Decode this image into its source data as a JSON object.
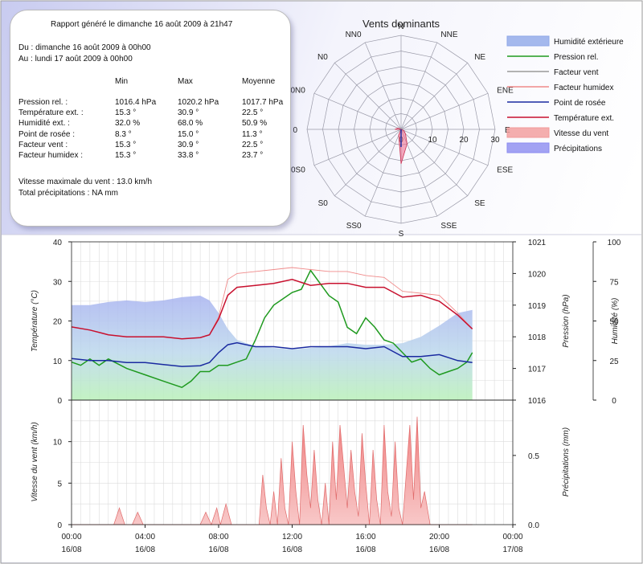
{
  "summary": {
    "title": "Rapport généré le dimanche 16 août 2009 à 21h47",
    "from": "Du : dimanche 16 août 2009 à 00h00",
    "to": "Au : lundi 17 août 2009 à 00h00",
    "headers": [
      "Min",
      "Max",
      "Moyenne"
    ],
    "rows": [
      {
        "label": "Pression rel. :",
        "min": "1016.4 hPa",
        "max": "1020.2 hPa",
        "avg": "1017.7 hPa"
      },
      {
        "label": "Température ext. :",
        "min": "15.3 °",
        "max": "30.9 °",
        "avg": "22.5 °"
      },
      {
        "label": "Humidité ext. :",
        "min": "32.0 %",
        "max": "68.0 %",
        "avg": "50.9 %"
      },
      {
        "label": "Point de rosée :",
        "min": "8.3 °",
        "max": "15.0 °",
        "avg": "11.3 °"
      },
      {
        "label": "Facteur vent :",
        "min": "15.3 °",
        "max": "30.9 °",
        "avg": "22.5 °"
      },
      {
        "label": "Facteur humidex :",
        "min": "15.3 °",
        "max": "33.8 °",
        "avg": "23.7 °"
      }
    ],
    "max_wind": "Vitesse maximale du vent : 13.0 km/h",
    "total_precip": "Total précipitations : NA mm"
  },
  "legend": [
    {
      "label": "Humidité extérieure",
      "kind": "area",
      "color": "#8fa8e8"
    },
    {
      "label": "Pression rel.",
      "kind": "line",
      "color": "#1f9a1f"
    },
    {
      "label": "Facteur vent",
      "kind": "line",
      "color": "#999999"
    },
    {
      "label": "Facteur humidex",
      "kind": "line",
      "color": "#f08a8a"
    },
    {
      "label": "Point de rosée",
      "kind": "line",
      "color": "#1a2aa0"
    },
    {
      "label": "Température ext.",
      "kind": "line",
      "color": "#c8102e"
    },
    {
      "label": "Vitesse du vent",
      "kind": "area",
      "color": "#f29a9a"
    },
    {
      "label": "Précipitations",
      "kind": "area",
      "color": "#8c8cf0"
    }
  ],
  "chart_data": [
    {
      "type": "radar",
      "title": "Vents dominants",
      "directions": [
        "N",
        "NNE",
        "NE",
        "ENE",
        "E",
        "ESE",
        "SE",
        "SSE",
        "S",
        "SS0",
        "S0",
        "0S0",
        "0",
        "0N0",
        "N0",
        "NN0"
      ],
      "radial_ticks": [
        0,
        10,
        20,
        30
      ],
      "rmax": 30,
      "values": [
        0,
        0,
        0,
        0,
        0,
        1,
        2,
        5,
        11,
        2,
        0,
        0,
        2,
        1,
        0,
        0
      ]
    },
    {
      "type": "line",
      "xlabels": [
        [
          "00:00",
          "16/08"
        ],
        [
          "04:00",
          "16/08"
        ],
        [
          "08:00",
          "16/08"
        ],
        [
          "12:00",
          "16/08"
        ],
        [
          "16:00",
          "16/08"
        ],
        [
          "20:00",
          "16/08"
        ],
        [
          "00:00",
          "17/08"
        ]
      ],
      "xlim": [
        0,
        24
      ],
      "ylabel_left": "Température (°C)",
      "ylim_left": [
        0,
        40
      ],
      "yticks_left": [
        0,
        10,
        20,
        30,
        40
      ],
      "ylabel_p": "Pression (hPa)",
      "ylim_p": [
        1016,
        1021
      ],
      "yticks_p": [
        1016,
        1017,
        1018,
        1019,
        1020,
        1021
      ],
      "ylabel_h": "Humidité (%)",
      "ylim_h": [
        0,
        100
      ],
      "yticks_h": [
        0,
        25,
        50,
        75,
        100
      ],
      "series": [
        {
          "name": "Humidité extérieure",
          "axis": "h",
          "x": [
            0,
            1,
            2,
            3,
            4,
            5,
            6,
            7,
            7.5,
            8,
            8.5,
            9,
            10,
            11,
            12,
            13,
            14,
            15,
            16,
            17,
            18,
            19,
            20,
            21,
            21.8
          ],
          "y": [
            60,
            60,
            62,
            63,
            62,
            63,
            65,
            66,
            63,
            55,
            45,
            38,
            34,
            33,
            32,
            33,
            34,
            36,
            35,
            35,
            36,
            40,
            47,
            55,
            57
          ]
        },
        {
          "name": "Pression rel.",
          "axis": "p",
          "x": [
            0,
            0.5,
            1,
            1.5,
            2,
            3,
            4,
            5,
            5.5,
            6,
            6.5,
            7,
            7.5,
            8,
            8.5,
            9,
            9.5,
            10,
            10.5,
            11,
            11.5,
            12,
            12.5,
            13,
            13.5,
            14,
            14.5,
            15,
            15.5,
            16,
            16.5,
            17,
            17.5,
            18,
            18.5,
            19,
            19.5,
            20,
            20.5,
            21,
            21.5,
            21.8
          ],
          "y": [
            1017.2,
            1017.1,
            1017.3,
            1017.1,
            1017.3,
            1017.0,
            1016.8,
            1016.6,
            1016.5,
            1016.4,
            1016.6,
            1016.9,
            1016.9,
            1017.1,
            1017.1,
            1017.2,
            1017.3,
            1017.9,
            1018.6,
            1019.0,
            1019.2,
            1019.4,
            1019.5,
            1020.1,
            1019.7,
            1019.3,
            1019.1,
            1018.3,
            1018.1,
            1018.6,
            1018.3,
            1017.9,
            1017.8,
            1017.5,
            1017.2,
            1017.3,
            1017.0,
            1016.8,
            1016.9,
            1017.0,
            1017.2,
            1017.5
          ]
        },
        {
          "name": "Facteur vent",
          "axis": "l",
          "x": [
            0,
            1,
            2,
            3,
            4,
            5,
            6,
            7,
            7.5,
            8,
            8.5,
            9,
            10,
            11,
            12,
            13,
            14,
            15,
            16,
            17,
            18,
            19,
            20,
            21,
            21.8
          ],
          "y": [
            18.5,
            17.7,
            16.5,
            16.0,
            16.0,
            16.0,
            15.5,
            15.8,
            16.5,
            20.5,
            26.5,
            28.5,
            29.0,
            29.5,
            30.5,
            29.0,
            29.5,
            29.5,
            28.5,
            28.5,
            26.0,
            26.5,
            25.0,
            21.5,
            18.0
          ]
        },
        {
          "name": "Facteur humidex",
          "axis": "l",
          "x": [
            0,
            1,
            2,
            3,
            4,
            5,
            6,
            7,
            7.5,
            8,
            8.5,
            9,
            10,
            11,
            12,
            13,
            14,
            15,
            16,
            17,
            18,
            19,
            20,
            21,
            21.8
          ],
          "y": [
            18.5,
            17.7,
            16.5,
            16.0,
            16.0,
            16.0,
            15.5,
            15.8,
            16.5,
            21.0,
            30.5,
            32.0,
            32.5,
            33.0,
            33.5,
            33.0,
            32.5,
            32.5,
            31.5,
            31.0,
            27.5,
            27.0,
            26.5,
            22.0,
            18.0
          ]
        },
        {
          "name": "Point de rosée",
          "axis": "l",
          "x": [
            0,
            1,
            2,
            3,
            4,
            5,
            6,
            7,
            7.5,
            8,
            8.5,
            9,
            10,
            11,
            12,
            13,
            14,
            15,
            16,
            17,
            18,
            19,
            20,
            21,
            21.8
          ],
          "y": [
            10.5,
            10.0,
            10.0,
            9.5,
            9.5,
            9.0,
            8.5,
            8.7,
            9.5,
            12.0,
            14.0,
            14.5,
            13.5,
            13.5,
            13.0,
            13.5,
            13.5,
            13.5,
            13.0,
            13.5,
            11.0,
            11.0,
            11.5,
            10.0,
            9.5
          ]
        },
        {
          "name": "Température ext.",
          "axis": "l",
          "x": [
            0,
            1,
            2,
            3,
            4,
            5,
            6,
            7,
            7.5,
            8,
            8.5,
            9,
            10,
            11,
            12,
            13,
            14,
            15,
            16,
            17,
            18,
            19,
            20,
            21,
            21.8
          ],
          "y": [
            18.5,
            17.7,
            16.5,
            16.0,
            16.0,
            16.0,
            15.5,
            15.8,
            16.5,
            20.5,
            26.5,
            28.5,
            29.0,
            29.5,
            30.5,
            29.0,
            29.5,
            29.5,
            28.5,
            28.5,
            26.0,
            26.5,
            25.0,
            21.5,
            18.0
          ]
        }
      ]
    },
    {
      "type": "area",
      "ylabel_left": "Vitesse du vent (km/h)",
      "ylim_left": [
        0,
        15
      ],
      "yticks_left": [
        0,
        5,
        10
      ],
      "ylabel_right": "Précipitations (mm)",
      "ylim_right": [
        0,
        0.9
      ],
      "yticks_right": [
        0,
        0.5
      ],
      "series": [
        {
          "name": "Vitesse du vent",
          "x": [
            0,
            2.3,
            2.6,
            2.9,
            3.3,
            3.6,
            3.9,
            4.2,
            7.0,
            7.3,
            7.6,
            7.9,
            8.1,
            8.4,
            8.7,
            10.2,
            10.4,
            10.6,
            10.8,
            11.0,
            11.2,
            11.4,
            11.6,
            11.8,
            12.0,
            12.2,
            12.4,
            12.6,
            12.8,
            13.0,
            13.2,
            13.4,
            13.6,
            13.8,
            14.0,
            14.2,
            14.4,
            14.6,
            14.8,
            15.0,
            15.2,
            15.4,
            15.6,
            15.8,
            16.0,
            16.2,
            16.4,
            16.6,
            16.8,
            17.0,
            17.2,
            17.4,
            17.6,
            17.8,
            18.0,
            18.2,
            18.4,
            18.6,
            18.8,
            19.0,
            19.2,
            19.5,
            21.8
          ],
          "y": [
            0,
            0,
            2,
            0,
            0,
            1.5,
            0,
            0,
            0,
            1.5,
            0,
            2,
            0,
            2.5,
            0,
            0,
            6,
            2,
            0,
            4,
            0,
            8,
            2,
            0,
            10,
            4,
            0,
            12,
            6,
            2,
            9,
            3,
            0,
            5,
            0,
            10,
            3,
            12,
            7,
            2,
            9,
            4,
            1,
            11,
            5,
            0,
            9,
            3,
            0,
            12,
            4,
            1,
            10,
            2,
            0,
            6,
            12,
            3,
            13,
            2,
            4,
            0,
            0
          ]
        },
        {
          "name": "Précipitations",
          "x": [],
          "y": []
        }
      ]
    }
  ]
}
